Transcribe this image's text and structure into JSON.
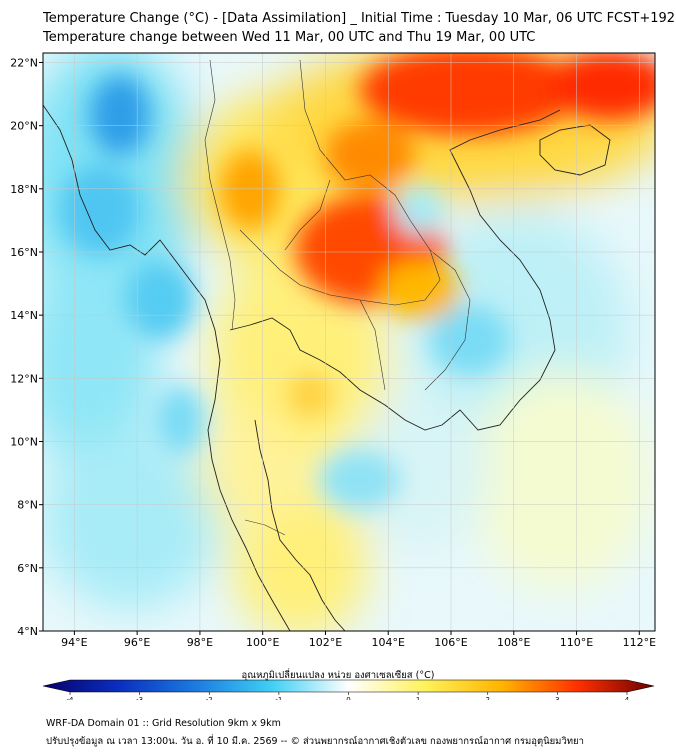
{
  "header": {
    "title_line1": "Temperature Change (°C) - [Data Assimilation] _ Initial Time : Tuesday 10 Mar, 06 UTC FCST+192",
    "title_line2": "Temperature change between Wed 11 Mar, 00 UTC and Thu 19 Mar, 00 UTC"
  },
  "map": {
    "lon_range": [
      93,
      112.5
    ],
    "lat_range": [
      4,
      22.3
    ],
    "lat_ticks": [
      {
        "value": 22,
        "label": "22°N"
      },
      {
        "value": 20,
        "label": "20°N"
      },
      {
        "value": 18,
        "label": "18°N"
      },
      {
        "value": 16,
        "label": "16°N"
      },
      {
        "value": 14,
        "label": "14°N"
      },
      {
        "value": 12,
        "label": "12°N"
      },
      {
        "value": 10,
        "label": "10°N"
      },
      {
        "value": 8,
        "label": "8°N"
      },
      {
        "value": 6,
        "label": "6°N"
      },
      {
        "value": 4,
        "label": "4°N"
      }
    ],
    "lon_ticks": [
      {
        "value": 94,
        "label": "94°E"
      },
      {
        "value": 96,
        "label": "96°E"
      },
      {
        "value": 98,
        "label": "98°E"
      },
      {
        "value": 100,
        "label": "100°E"
      },
      {
        "value": 102,
        "label": "102°E"
      },
      {
        "value": 104,
        "label": "104°E"
      },
      {
        "value": 106,
        "label": "106°E"
      },
      {
        "value": 108,
        "label": "108°E"
      },
      {
        "value": 110,
        "label": "110°E"
      },
      {
        "value": 112,
        "label": "112°E"
      }
    ],
    "regions": [
      {
        "name": "north-warm",
        "lon": 106.5,
        "lat": 21.2,
        "value": 3.1
      },
      {
        "name": "northeast-hot",
        "lon": 110.5,
        "lat": 21.6,
        "value": 3.3
      },
      {
        "name": "isan-hot",
        "lon": 103.2,
        "lat": 16.0,
        "value": 3.4
      },
      {
        "name": "laos-warm",
        "lon": 102.5,
        "lat": 18.4,
        "value": 2.6
      },
      {
        "name": "myanmar-cold",
        "lon": 95.8,
        "lat": 19.8,
        "value": -2.2
      },
      {
        "name": "andaman-cool",
        "lon": 95.5,
        "lat": 15.0,
        "value": -1.2
      },
      {
        "name": "south-china-sea-cool",
        "lon": 108.5,
        "lat": 13.8,
        "value": -0.9
      },
      {
        "name": "gulf-cool",
        "lon": 102.0,
        "lat": 8.5,
        "value": -0.8
      },
      {
        "name": "malay-warm",
        "lon": 101.5,
        "lat": 6.8,
        "value": 1.0
      },
      {
        "name": "vietnam-east-cool",
        "lon": 107.0,
        "lat": 16.5,
        "value": -0.6
      }
    ]
  },
  "colorbar": {
    "title": "อุณหภูมิเปลี่ยนแปลง หน่วย องศาเซลเซียส (°C)",
    "min": -4,
    "max": 4,
    "ticks": [
      {
        "value": -4,
        "label": "-4"
      },
      {
        "value": -3,
        "label": "-3"
      },
      {
        "value": -2,
        "label": "-2"
      },
      {
        "value": -1,
        "label": "-1"
      },
      {
        "value": 0,
        "label": "0"
      },
      {
        "value": 1,
        "label": "1"
      },
      {
        "value": 2,
        "label": "2"
      },
      {
        "value": 3,
        "label": "3"
      },
      {
        "value": 4,
        "label": "4"
      }
    ],
    "colors": [
      "#08006b",
      "#0a2fc0",
      "#1c7be0",
      "#3fd0f5",
      "#ffffff",
      "#fff25a",
      "#ffb400",
      "#ff3000",
      "#6a0000"
    ]
  },
  "footer": {
    "line1": "WRF-DA Domain 01 :: Grid Resolution 9km x 9km",
    "line2": "ปรับปรุงข้อมูล ณ เวลา 13:00น. วัน อ. ที่ 10 มี.ค. 2569 -- © ส่วนพยากรณ์อากาศเชิงตัวเลข กองพยากรณ์อากาศ กรมอุตุนิยมวิทยา"
  }
}
